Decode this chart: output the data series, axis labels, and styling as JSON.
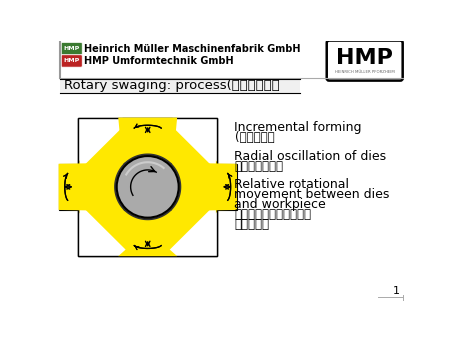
{
  "title": "Rotary swaging: process(旋鍛：工艺）",
  "header_line1": "Heinrich Müller Maschinenfabrik GmbH",
  "header_line2": "HMP Umformtechnik GmbH",
  "hmp_badge1_color": "#3a7a30",
  "hmp_badge2_color": "#bb2222",
  "text1_en": "Incremental forming",
  "text1_cn": "(渐进成型）",
  "text2_en": "Radial oscillation of dies",
  "text2_cn": "（径向振赡模）",
  "text3_l1": "Relative rotational",
  "text3_l2": "movement between dies",
  "text3_l3": "and workpiece",
  "text3_cn1": "（在模具工件之间的径向",
  "text3_cn2": "振赡移动）",
  "die_color": "#FFE800",
  "workpiece_color": "#aaaaaa",
  "bg_color": "#ffffff",
  "border_color": "#000000",
  "page_number": "1"
}
